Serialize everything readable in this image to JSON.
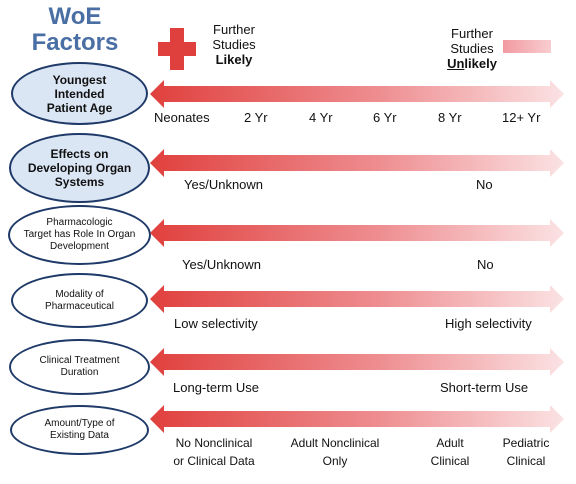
{
  "title": {
    "line1": "WoE",
    "line2": "Factors"
  },
  "legend": {
    "likely": {
      "line1": "Further",
      "line2": "Studies",
      "line3": "Likely"
    },
    "unlikely": {
      "line1": "Further",
      "line2": "Studies",
      "line3_underlined": "Un",
      "line3_rest": "likely"
    }
  },
  "colors": {
    "accent_red": "#e0403d",
    "oval_border": "#1f3a68",
    "title_blue": "#4a6fa5",
    "oval_fill": "#dbe6f5"
  },
  "factors": [
    {
      "label_lines": [
        "Youngest",
        "Intended",
        "Patient Age"
      ],
      "scale": [
        "Neonates",
        "2 Yr",
        "4 Yr",
        "6 Yr",
        "8 Yr",
        "12+ Yr"
      ]
    },
    {
      "label_lines": [
        "Effects on",
        "Developing Organ",
        "Systems"
      ],
      "scale": [
        "Yes/Unknown",
        "No"
      ]
    },
    {
      "label_lines": [
        "Pharmacologic",
        "Target has Role In Organ",
        "Development"
      ],
      "scale": [
        "Yes/Unknown",
        "No"
      ]
    },
    {
      "label_lines": [
        "Modality of",
        "Pharmaceutical"
      ],
      "scale": [
        "Low selectivity",
        "High selectivity"
      ]
    },
    {
      "label_lines": [
        "Clinical Treatment",
        "Duration"
      ],
      "scale": [
        "Long-term Use",
        "Short-term Use"
      ]
    },
    {
      "label_lines": [
        "Amount/Type of",
        "Existing Data"
      ],
      "scale": [
        {
          "l1": "No Nonclinical",
          "l2": "or Clinical Data"
        },
        {
          "l1": "Adult Nonclinical",
          "l2": "Only"
        },
        {
          "l1": "Adult",
          "l2": "Clinical"
        },
        {
          "l1": "Pediatric",
          "l2": "Clinical"
        }
      ]
    }
  ]
}
